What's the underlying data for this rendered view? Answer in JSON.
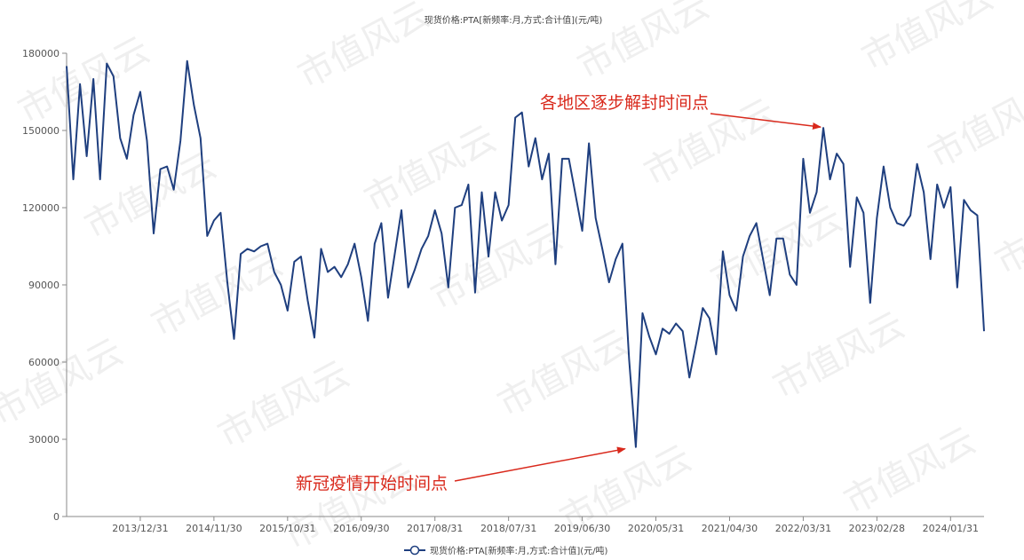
{
  "colors": {
    "series": "#1f3f7f",
    "annotation": "#d9291c",
    "axis": "#888888"
  },
  "watermark": "市值风云",
  "chart_data": {
    "type": "line",
    "title": "现货价格:PTA[新频率:月,方式:合计值](元/吨)",
    "ylim": [
      0,
      180000
    ],
    "yticks": [
      0,
      30000,
      60000,
      90000,
      120000,
      150000,
      180000
    ],
    "ytick_labels": [
      "0",
      "30000",
      "60000",
      "90000",
      "120000",
      "150000",
      "180000"
    ],
    "xtick_labels": [
      "2013/12/31",
      "2014/11/30",
      "2015/10/31",
      "2016/09/30",
      "2017/08/31",
      "2018/07/31",
      "2019/06/30",
      "2020/05/31",
      "2021/04/30",
      "2022/03/31",
      "2023/02/28",
      "2024/01/31"
    ],
    "xtick_index": [
      11,
      22,
      33,
      44,
      55,
      66,
      77,
      88,
      99,
      110,
      121,
      132
    ],
    "grid": false,
    "legend": "bottom-center",
    "series": [
      {
        "name": "现货价格:PTA[新频率:月,方式:合计值](元/吨)",
        "values": [
          175000,
          131000,
          168000,
          140000,
          170000,
          131000,
          176000,
          171000,
          147000,
          139000,
          156000,
          165000,
          146000,
          110000,
          135000,
          136000,
          127000,
          146000,
          177000,
          160000,
          147000,
          109000,
          115000,
          118000,
          91000,
          69000,
          102000,
          104000,
          103000,
          105000,
          106000,
          95000,
          90000,
          80000,
          99000,
          101000,
          84000,
          69500,
          104000,
          95000,
          97000,
          93000,
          98000,
          106000,
          93000,
          76000,
          106000,
          114000,
          85000,
          102000,
          119000,
          89000,
          96000,
          104000,
          109000,
          119000,
          110000,
          89000,
          120000,
          121000,
          129000,
          87000,
          126000,
          101000,
          126000,
          115000,
          121000,
          155000,
          157000,
          136000,
          147000,
          131000,
          141000,
          98000,
          139000,
          139000,
          125000,
          111000,
          145000,
          116000,
          104000,
          91000,
          100000,
          106000,
          61000,
          27000,
          79000,
          70000,
          63000,
          73000,
          71000,
          75000,
          72000,
          54000,
          67000,
          81000,
          77000,
          63000,
          103000,
          86000,
          80000,
          101000,
          109000,
          114000,
          100000,
          86000,
          108000,
          108000,
          94000,
          90000,
          139000,
          118000,
          126000,
          151000,
          131000,
          141000,
          137000,
          97000,
          124000,
          118000,
          83000,
          116000,
          136000,
          120000,
          114000,
          113000,
          117000,
          137000,
          126000,
          100000,
          129000,
          120000,
          128000,
          89000,
          123000,
          119000,
          117000,
          72000
        ]
      }
    ],
    "annotations": [
      {
        "text": "各地区逐步解封时间点",
        "point_index": 113
      },
      {
        "text": "新冠疫情开始时间点",
        "point_index": 85
      }
    ]
  }
}
